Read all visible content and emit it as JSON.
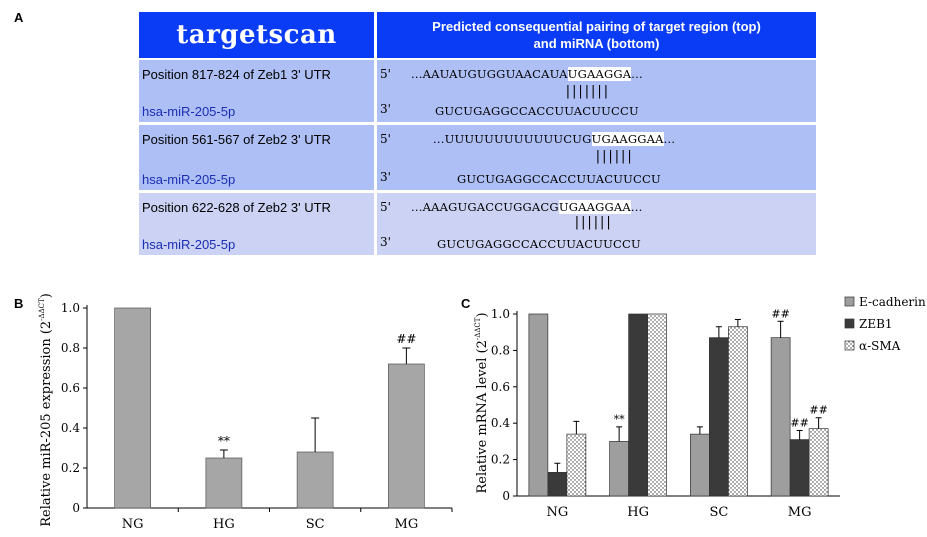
{
  "panels": {
    "a": "A",
    "b": "B",
    "c": "C"
  },
  "targetscan": {
    "logo": "targetscan",
    "header_line1": "Predicted consequential pairing of target region (top)",
    "header_line2": "and miRNA (bottom)",
    "colors": {
      "header": "#0a3bf5",
      "row": "#aebff5",
      "row_alt": "#ccd2f3",
      "mirna_text": "#1a2fb5"
    },
    "rows": [
      {
        "position": "Position 817-824 of Zeb1 3' UTR",
        "mirna": "hsa-miR-205-5p",
        "prime5": "5'",
        "prime3": "3'",
        "target_pre": "...AAUAUGUGGUAACAUA",
        "target_site": "UGAAGGA",
        "target_post": "...",
        "pairing": "|||||||",
        "mirna_seq": "GUCUGAGGCCACCUUACUUCCU"
      },
      {
        "position": "Position 561-567 of Zeb2 3' UTR",
        "mirna": "hsa-miR-205-5p",
        "prime5": "5'",
        "prime3": "3'",
        "target_pre": "...UUUUUUUUUUUUCUG",
        "target_site": "UGAAGGAA",
        "target_post": "...",
        "pairing": "||||||",
        "mirna_seq": "GUCUGAGGCCACCUUACUUCCU"
      },
      {
        "position": "Position 622-628 of Zeb2 3' UTR",
        "mirna": "hsa-miR-205-5p",
        "prime5": "5'",
        "prime3": "3'",
        "target_pre": "...AAAGUGACCUGGACG",
        "target_site": "UGAAGGAA",
        "target_post": "...",
        "pairing": "||||||",
        "mirna_seq": "GUCUGAGGCCACCUUACUUCCU"
      }
    ]
  },
  "chart_data": [
    {
      "type": "bar",
      "ylabel": "Relative miR-205 expression",
      "ylabel_sup": "(2",
      "ylabel_exp": "-ΔΔCT",
      "ylabel_close": ")",
      "categories": [
        "NG",
        "HG",
        "SC",
        "MG"
      ],
      "values": [
        1.0,
        0.25,
        0.28,
        0.72
      ],
      "errors": [
        0,
        0.04,
        0.17,
        0.08
      ],
      "annotations": [
        "",
        "**",
        "",
        "##"
      ],
      "ylim": [
        0,
        1.0
      ],
      "yticks": [
        "0",
        "0.2",
        "0.4",
        "0.6",
        "0.8",
        "1.0"
      ],
      "bar_color": "#a6a6a6"
    },
    {
      "type": "bar",
      "ylabel": "Relative mRNA level",
      "ylabel_sup": "(2",
      "ylabel_exp": "-ΔΔCT",
      "ylabel_close": ")",
      "categories": [
        "NG",
        "HG",
        "SC",
        "MG"
      ],
      "series": [
        {
          "name": "E-cadherin",
          "values": [
            1.0,
            0.3,
            0.34,
            0.87
          ],
          "errors": [
            0,
            0.08,
            0.04,
            0.09
          ],
          "annotations": [
            "",
            "**",
            "",
            "##"
          ],
          "color": "#9e9e9e"
        },
        {
          "name": "ZEB1",
          "values": [
            0.13,
            1.0,
            0.87,
            0.31
          ],
          "errors": [
            0.05,
            0,
            0.06,
            0.05
          ],
          "annotations": [
            "",
            "",
            "",
            "##"
          ],
          "color": "#3a3a3a"
        },
        {
          "name": "α-SMA",
          "values": [
            0.34,
            1.0,
            0.93,
            0.37
          ],
          "errors": [
            0.07,
            0,
            0.04,
            0.06
          ],
          "annotations": [
            "",
            "",
            "",
            "##"
          ],
          "color": "dotted"
        }
      ],
      "ylim": [
        0,
        1.0
      ],
      "yticks": [
        "0",
        "0.2",
        "0.4",
        "0.6",
        "0.8",
        "1.0"
      ],
      "legend_position": "top-right"
    }
  ]
}
